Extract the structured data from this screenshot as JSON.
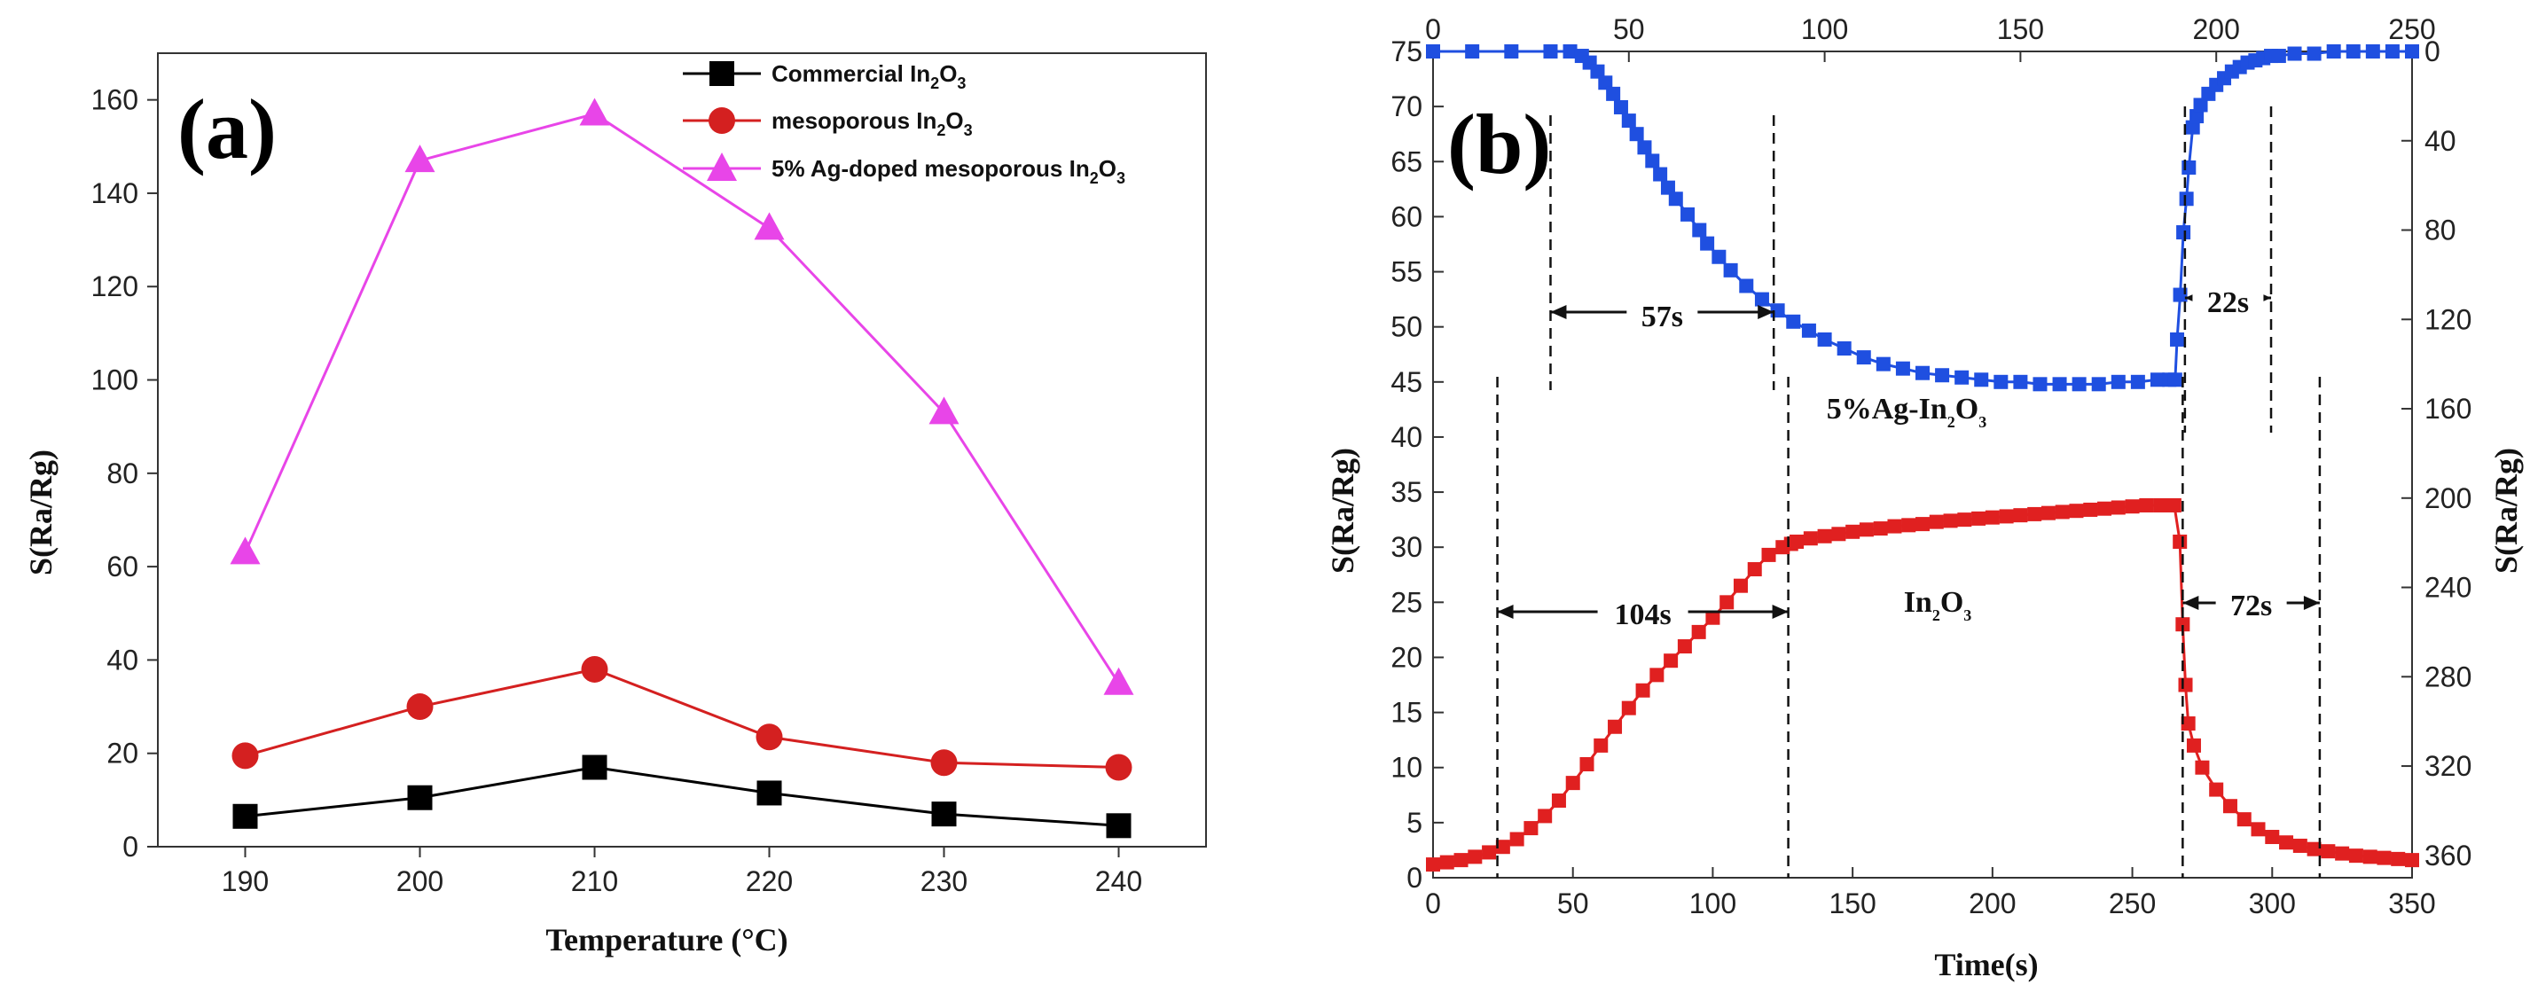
{
  "chart_data": [
    {
      "panel": "(a)",
      "type": "line",
      "xlabel": "Temperature (°C)",
      "ylabel": "S(Ra/Rg)",
      "x": [
        190,
        200,
        210,
        220,
        230,
        240
      ],
      "xlim": [
        185,
        245
      ],
      "ylim": [
        0,
        170
      ],
      "xticks": [
        190,
        200,
        210,
        220,
        230,
        240
      ],
      "yticks": [
        0,
        20,
        40,
        60,
        80,
        100,
        120,
        140,
        160
      ],
      "legend_position": "top-right",
      "series": [
        {
          "name": "Commercial In2O3",
          "legend_main": "Commercial In",
          "legend_sub1": "2",
          "legend_mid": "O",
          "legend_sub2": "3",
          "marker": "square",
          "color": "#000000",
          "values": [
            6.5,
            10.5,
            17,
            11.5,
            7,
            4.5
          ]
        },
        {
          "name": "mesoporous In2O3",
          "legend_main": "mesoporous In",
          "legend_sub1": "2",
          "legend_mid": "O",
          "legend_sub2": "3",
          "marker": "circle",
          "color": "#d42020",
          "values": [
            19.5,
            30,
            38,
            23.5,
            18,
            17
          ]
        },
        {
          "name": "5% Ag-doped mesoporous In2O3",
          "legend_main": "5% Ag-doped mesoporous In",
          "legend_sub1": "2",
          "legend_mid": "O",
          "legend_sub2": "3",
          "marker": "triangle",
          "color": "#e845e8",
          "values": [
            63,
            147,
            157,
            132.5,
            93,
            35
          ]
        }
      ]
    },
    {
      "panel": "(b)",
      "type": "scatter",
      "xlabel": "Time(s)",
      "ylabel_left": "S(Ra/Rg)",
      "ylabel_right": "S(Ra/Rg)",
      "bottom_x": {
        "lim": [
          0,
          350
        ],
        "ticks": [
          0,
          50,
          100,
          150,
          200,
          250,
          300,
          350
        ]
      },
      "top_x": {
        "lim": [
          0,
          250
        ],
        "ticks": [
          0,
          50,
          100,
          150,
          200,
          250
        ]
      },
      "left_y": {
        "lim": [
          0,
          75
        ],
        "ticks": [
          0,
          5,
          10,
          15,
          20,
          25,
          30,
          35,
          40,
          45,
          50,
          55,
          60,
          65,
          70,
          75
        ]
      },
      "right_y": {
        "lim": [
          0,
          370
        ],
        "inverted": true,
        "ticks": [
          0,
          40,
          80,
          120,
          160,
          200,
          240,
          280,
          320,
          360
        ]
      },
      "series": [
        {
          "name": "5%Ag-In2O3",
          "axes": "top-x / right-y (inverted)",
          "color": "#1f4fe0",
          "x": [
            0,
            10,
            20,
            30,
            35,
            38,
            40,
            42,
            44,
            46,
            48,
            50,
            52,
            54,
            56,
            58,
            60,
            62,
            65,
            68,
            70,
            73,
            76,
            80,
            84,
            88,
            92,
            96,
            100,
            105,
            110,
            115,
            120,
            125,
            130,
            135,
            140,
            145,
            150,
            155,
            160,
            165,
            170,
            175,
            180,
            185,
            188,
            189.5,
            190,
            190.8,
            191.6,
            192.4,
            193,
            194,
            195,
            196,
            198,
            200,
            202,
            204,
            206,
            208,
            210,
            212,
            214,
            216,
            220,
            225,
            230,
            235,
            240,
            245,
            250
          ],
          "values": [
            0,
            0,
            0,
            0,
            0,
            2,
            5,
            9,
            14,
            19,
            25,
            31,
            37,
            43,
            49,
            55,
            61,
            66,
            73,
            80,
            86,
            92,
            98,
            105,
            111,
            116,
            121,
            125,
            129,
            133,
            137,
            140,
            142,
            144,
            145,
            146,
            147,
            148,
            148,
            149,
            149,
            149,
            149,
            148,
            148,
            147,
            147,
            147,
            129,
            109,
            81,
            66,
            52,
            34,
            29,
            24,
            19,
            15,
            12,
            9,
            7,
            5,
            4,
            3,
            2,
            2,
            1,
            1,
            0,
            0,
            0,
            0,
            0
          ]
        },
        {
          "name": "In2O3",
          "axes": "bottom-x / left-y",
          "color": "#e02020",
          "x": [
            0,
            5,
            10,
            15,
            20,
            25,
            30,
            35,
            40,
            45,
            50,
            55,
            60,
            65,
            70,
            75,
            80,
            85,
            90,
            95,
            100,
            105,
            110,
            115,
            120,
            125,
            128,
            130,
            135,
            140,
            145,
            150,
            155,
            160,
            165,
            170,
            175,
            180,
            185,
            190,
            195,
            200,
            205,
            210,
            215,
            220,
            225,
            230,
            235,
            240,
            245,
            250,
            255,
            260,
            265,
            267,
            268,
            269,
            270,
            272,
            275,
            280,
            285,
            290,
            295,
            300,
            305,
            310,
            315,
            320,
            325,
            330,
            335,
            340,
            345,
            350
          ],
          "values": [
            1.2,
            1.4,
            1.6,
            1.9,
            2.3,
            2.8,
            3.5,
            4.5,
            5.6,
            7.0,
            8.6,
            10.3,
            12.0,
            13.7,
            15.4,
            17.0,
            18.4,
            19.7,
            21.0,
            22.3,
            23.6,
            25.0,
            26.5,
            28.0,
            29.3,
            30.0,
            30.3,
            30.5,
            30.8,
            31.0,
            31.2,
            31.4,
            31.6,
            31.7,
            31.9,
            32.0,
            32.1,
            32.3,
            32.4,
            32.5,
            32.6,
            32.7,
            32.8,
            32.9,
            33.0,
            33.1,
            33.2,
            33.3,
            33.4,
            33.5,
            33.6,
            33.7,
            33.8,
            33.8,
            33.8,
            30.5,
            23.0,
            17.5,
            14.0,
            12.0,
            10.0,
            8.0,
            6.5,
            5.3,
            4.4,
            3.7,
            3.2,
            2.9,
            2.6,
            2.4,
            2.2,
            2.0,
            1.9,
            1.8,
            1.7,
            1.6
          ]
        }
      ],
      "annotations": [
        {
          "text": "57s",
          "axes": "top-x",
          "from": 30,
          "to": 87
        },
        {
          "text": "22s",
          "axes": "top-x",
          "from": 192,
          "to": 214
        },
        {
          "text": "104s",
          "axes": "bottom-x",
          "from": 23,
          "to": 127
        },
        {
          "text": "72s",
          "axes": "bottom-x",
          "from": 268,
          "to": 317
        }
      ],
      "series_labels": [
        {
          "text_main": "5%Ag-In",
          "sub1": "2",
          "mid": "O",
          "sub2": "3"
        },
        {
          "text_main": "In",
          "sub1": "2",
          "mid": "O",
          "sub2": "3"
        }
      ]
    }
  ]
}
